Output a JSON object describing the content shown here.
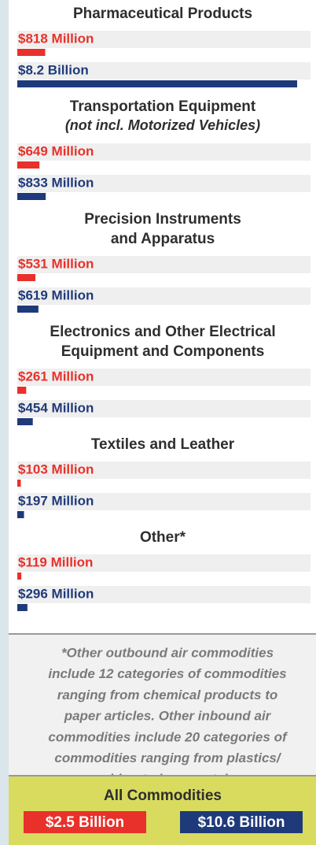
{
  "chart_data": {
    "type": "bar",
    "categories": [
      [
        "Pharmaceutical Products"
      ],
      [
        "Transportation Equipment"
      ],
      [
        "Precision Instruments",
        "and Apparatus"
      ],
      [
        "Electronics and Other Electrical",
        "Equipment and Components"
      ],
      [
        "Textiles and Leather"
      ],
      [
        "Other*"
      ]
    ],
    "subtitles": [
      null,
      "(not incl. Motorized Vehicles)",
      null,
      null,
      null,
      null
    ],
    "series": [
      {
        "color": "#e8312a",
        "values": [
          818,
          649,
          531,
          261,
          103,
          119
        ],
        "value_labels": [
          "$818 Million",
          "$649 Million",
          "$531 Million",
          "$261 Million",
          "$103 Million",
          "$119 Million"
        ]
      },
      {
        "color": "#1f3a7a",
        "values": [
          8200,
          833,
          619,
          454,
          197,
          296
        ],
        "value_labels": [
          "$8.2 Billion",
          "$833 Million",
          "$619 Million",
          "$454 Million",
          "$197 Million",
          "$296 Million"
        ]
      }
    ],
    "note_lines": [
      "*Other outbound air commodities",
      "include 12 categories of commodities",
      "ranging from chemical products to",
      "paper articles. Other inbound air",
      "commodities include 20 categories of",
      "commodities ranging from plastics/",
      "rubber to base metals."
    ],
    "totals": {
      "title": "All Commodities",
      "values": [
        2500,
        10600
      ],
      "value_labels": [
        "$2.5 Billion",
        "$10.6 Billion"
      ]
    }
  }
}
